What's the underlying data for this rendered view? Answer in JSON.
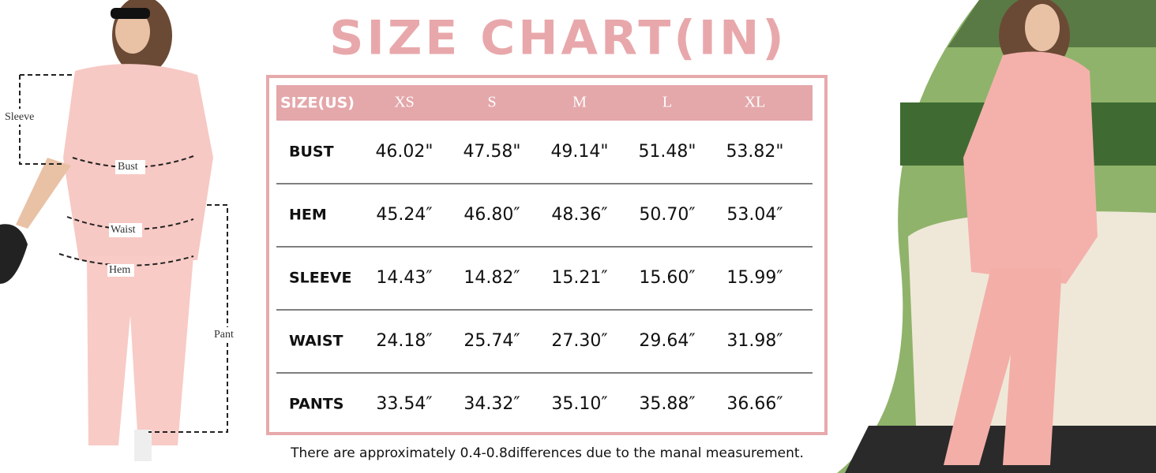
{
  "title": "SIZE  CHART(IN)",
  "table": {
    "header": [
      "SIZE(US)",
      "XS",
      "S",
      "M",
      "L",
      "XL"
    ],
    "rows": [
      [
        "BUST",
        "46.02\"",
        "47.58\"",
        "49.14\"",
        "51.48\"",
        "53.82\""
      ],
      [
        "HEM",
        "45.24″",
        "46.80″",
        "48.36″",
        "50.70″",
        "53.04″"
      ],
      [
        "SLEEVE",
        "14.43″",
        "14.82″",
        "15.21″",
        "15.60″",
        "15.99″"
      ],
      [
        "WAIST",
        "24.18″",
        "25.74″",
        "27.30″",
        "29.64″",
        "31.98″"
      ],
      [
        "PANTS",
        "33.54″",
        "34.32″",
        "35.10″",
        "35.88″",
        "36.66″"
      ]
    ]
  },
  "note": "There are approximately 0.4-0.8differences due to the manal  measurement.",
  "measure_labels": {
    "sleeve": "Sleeve",
    "bust": "Bust",
    "waist": "Waist",
    "hem": "Hem",
    "pant": "Pant"
  }
}
